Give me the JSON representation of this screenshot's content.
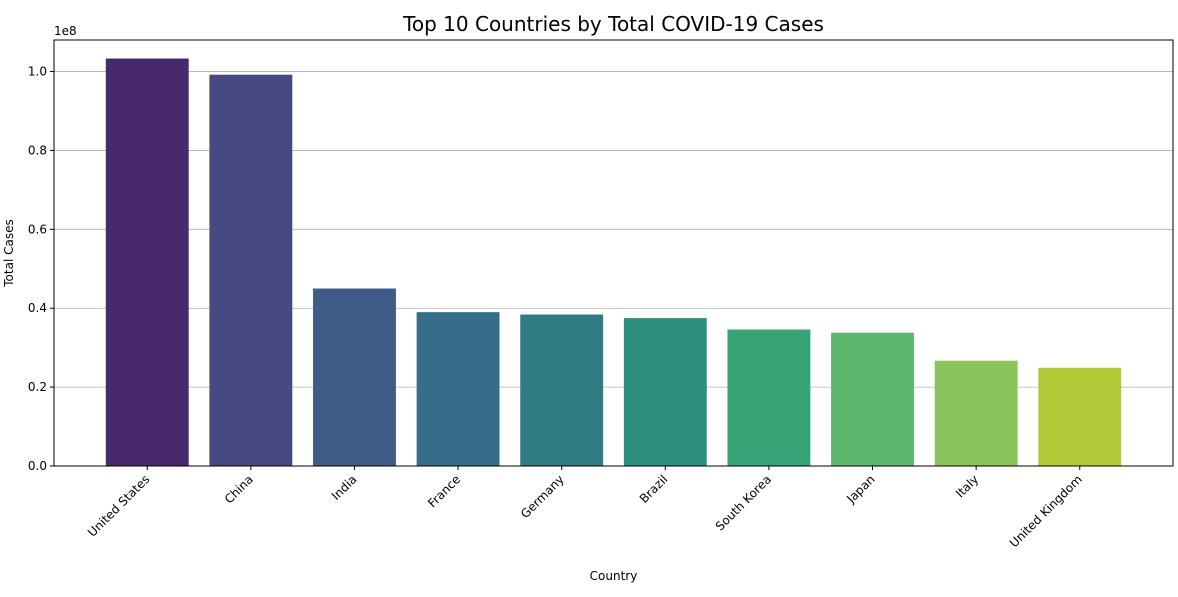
{
  "chart_data": {
    "type": "bar",
    "title": "Top 10 Countries by Total COVID-19 Cases",
    "xlabel": "Country",
    "ylabel": "Total Cases",
    "y_offset_label": "1e8",
    "y_scale": 100000000,
    "ylim": [
      0,
      108000000
    ],
    "yticks": [
      0,
      20000000,
      40000000,
      60000000,
      80000000,
      100000000
    ],
    "ytick_labels": [
      "0.0",
      "0.2",
      "0.4",
      "0.6",
      "0.8",
      "1.0"
    ],
    "grid": "y",
    "legend": "none",
    "categories": [
      "United States",
      "China",
      "India",
      "France",
      "Germany",
      "Brazil",
      "South Korea",
      "Japan",
      "Italy",
      "United Kingdom"
    ],
    "values": [
      103300000,
      99200000,
      45000000,
      39000000,
      38400000,
      37500000,
      34600000,
      33800000,
      26700000,
      24900000
    ],
    "colors": [
      "#482A6C",
      "#474A81",
      "#3F5C89",
      "#366D89",
      "#2F7C82",
      "#2E8E80",
      "#37A478",
      "#5DB86E",
      "#89C45A",
      "#B3C836"
    ]
  }
}
